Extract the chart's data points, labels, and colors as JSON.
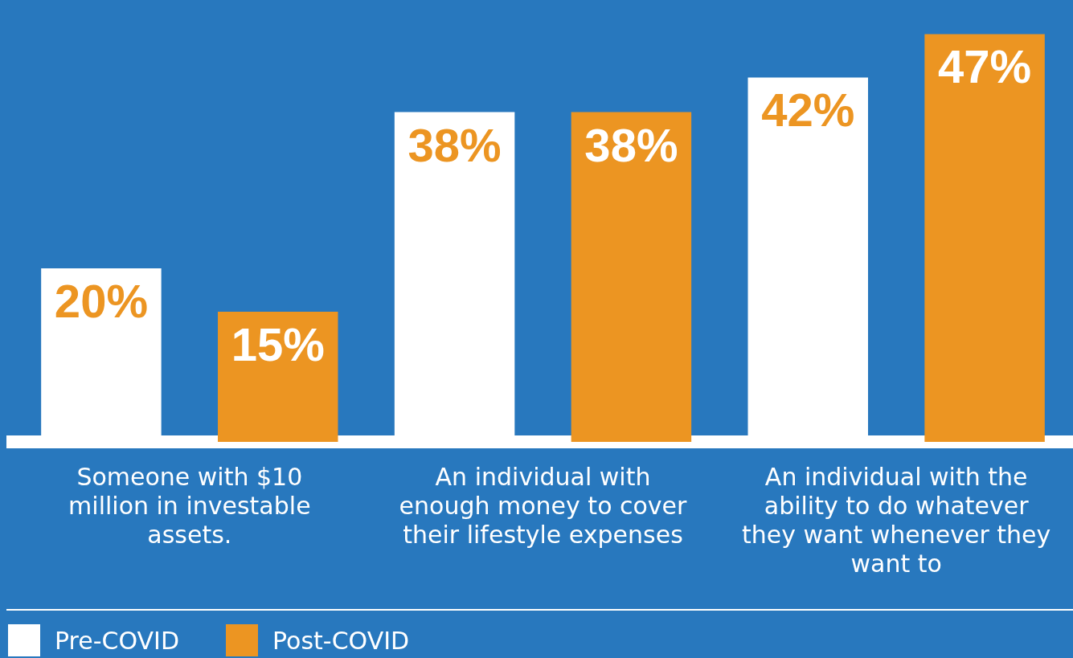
{
  "chart_data": {
    "type": "bar",
    "categories": [
      "Someone with $10 million in investable assets.",
      "An individual with enough money to cover their lifestyle expenses",
      "An individual with the ability to do whatever they want whenever they want to"
    ],
    "series": [
      {
        "name": "Pre-COVID",
        "color": "#ffffff",
        "values": [
          20,
          38,
          42
        ],
        "value_labels": [
          "20%",
          "38%",
          "42%"
        ]
      },
      {
        "name": "Post-COVID",
        "color": "#ec9522",
        "values": [
          15,
          38,
          47
        ],
        "value_labels": [
          "15%",
          "38%",
          "47%"
        ]
      }
    ],
    "relative": false,
    "grid": false,
    "legend": "bottom left"
  }
}
